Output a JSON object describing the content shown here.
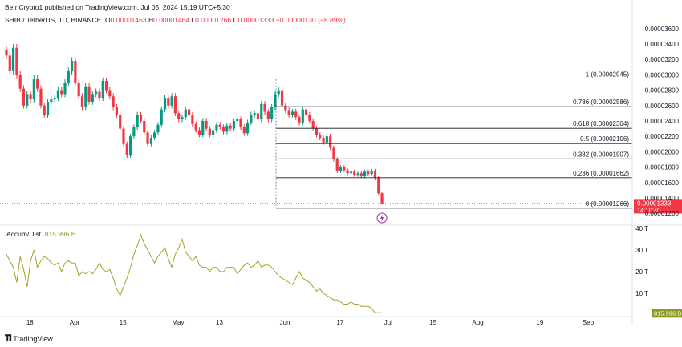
{
  "header": {
    "published": "BeInCrypto1 published on TradingView.com, Jul 05, 2024 15:19 UTC+5:30",
    "symbol": "SHIB / TetherUS, 1D, BINANCE",
    "o_label": "O",
    "o_value": "0.00001463",
    "h_label": "H",
    "h_value": "0.00001464",
    "l_label": "L",
    "l_value": "0.00001266",
    "c_label": "C",
    "c_value": "0.00001333",
    "change": "−0.00000130 (−8.89%)"
  },
  "indicator": {
    "name": "Accum/Dist",
    "value": "815.996 B"
  },
  "footer": {
    "brand": "TradingView"
  },
  "colors": {
    "up": "#089981",
    "down": "#f23645",
    "ad": "#a4a22c",
    "last": "#f23645"
  },
  "chart_data": {
    "type": "candlestick",
    "main": {
      "ylim": [
        1.16e-05,
        3.66e-05
      ],
      "y_ticks": [
        "0.00001200",
        "0.00001400",
        "0.00001600",
        "0.00001800",
        "0.00002000",
        "0.00002200",
        "0.00002400",
        "0.00002600",
        "0.00002800",
        "0.00003000",
        "0.00003200",
        "0.00003400",
        "0.00003600"
      ],
      "last_price": "0.00001333",
      "countdown": "14:10:40",
      "fib_levels": [
        {
          "label": "1 (0.00002945)",
          "value": 2.945e-05
        },
        {
          "label": "0.786 (0.00002586)",
          "value": 2.586e-05
        },
        {
          "label": "0.618 (0.00002304)",
          "value": 2.304e-05
        },
        {
          "label": "0.5 (0.00002106)",
          "value": 2.106e-05
        },
        {
          "label": "0.382 (0.00001907)",
          "value": 1.907e-05
        },
        {
          "label": "0.236 (0.00001662)",
          "value": 1.662e-05
        },
        {
          "label": "0 (0.00001266)",
          "value": 1.266e-05
        }
      ],
      "closes": [
        3.25e-05,
        3.05e-05,
        3.35e-05,
        3e-05,
        2.82e-05,
        2.6e-05,
        2.75e-05,
        2.68e-05,
        2.95e-05,
        2.82e-05,
        2.6e-05,
        2.48e-05,
        2.65e-05,
        2.68e-05,
        2.7e-05,
        2.8e-05,
        2.75e-05,
        2.9e-05,
        3.05e-05,
        3.18e-05,
        2.9e-05,
        2.72e-05,
        2.58e-05,
        2.85e-05,
        2.65e-05,
        2.75e-05,
        2.78e-05,
        2.7e-05,
        2.92e-05,
        2.8e-05,
        2.72e-05,
        2.58e-05,
        2.48e-05,
        2.3e-05,
        2.1e-05,
        1.95e-05,
        2.2e-05,
        2.32e-05,
        2.48e-05,
        2.4e-05,
        2.25e-05,
        2.1e-05,
        2.18e-05,
        2.25e-05,
        2.35e-05,
        2.55e-05,
        2.7e-05,
        2.6e-05,
        2.72e-05,
        2.5e-05,
        2.42e-05,
        2.45e-05,
        2.55e-05,
        2.48e-05,
        2.36e-05,
        2.28e-05,
        2.22e-05,
        2.4e-05,
        2.3e-05,
        2.22e-05,
        2.28e-05,
        2.35e-05,
        2.32e-05,
        2.26e-05,
        2.34e-05,
        2.3e-05,
        2.4e-05,
        2.42e-05,
        2.32e-05,
        2.24e-05,
        2.38e-05,
        2.48e-05,
        2.5e-05,
        2.42e-05,
        2.62e-05,
        2.52e-05,
        2.42e-05,
        2.58e-05,
        2.75e-05,
        2.8e-05,
        2.6e-05,
        2.54e-05,
        2.48e-05,
        2.52e-05,
        2.45e-05,
        2.38e-05,
        2.55e-05,
        2.48e-05,
        2.4e-05,
        2.3e-05,
        2.22e-05,
        2.18e-05,
        2.12e-05,
        2.2e-05,
        2.05e-05,
        1.9e-05,
        1.75e-05,
        1.8e-05,
        1.76e-05,
        1.72e-05,
        1.74e-05,
        1.7e-05,
        1.72e-05,
        1.68e-05,
        1.74e-05,
        1.71e-05,
        1.75e-05,
        1.66e-05,
        1.46e-05,
        1.33e-05
      ]
    },
    "accum_dist": {
      "ylim": [
        0,
        40
      ],
      "unit": "T",
      "y_ticks": [
        "40 T",
        "30 T",
        "20 T",
        "10 T"
      ],
      "values": [
        28,
        25,
        22,
        15,
        27,
        21,
        13,
        25,
        30,
        22,
        25,
        27,
        26,
        24,
        23,
        24,
        20,
        24,
        25,
        24,
        24,
        18,
        20,
        19,
        20,
        19,
        21,
        24,
        21,
        20,
        21,
        17,
        12,
        9,
        13,
        17,
        22,
        28,
        32,
        37,
        33,
        30,
        27,
        24,
        27,
        29,
        31,
        26,
        22,
        28,
        31,
        35,
        29,
        27,
        25,
        27,
        23,
        22,
        22,
        20,
        22,
        22,
        20,
        20,
        22,
        22,
        22,
        19,
        21,
        23,
        24,
        22,
        23,
        25,
        22,
        23,
        23,
        22,
        20,
        18,
        17,
        16,
        15,
        14,
        17,
        20,
        17,
        16,
        15,
        13,
        11,
        12,
        10,
        9,
        8,
        7,
        7,
        6,
        5,
        5,
        6,
        5,
        5,
        4,
        4,
        4,
        3,
        1,
        1,
        1
      ],
      "last_value": "815.996 B"
    },
    "x_ticks": [
      {
        "label": "18",
        "day": 1
      },
      {
        "label": "Apr",
        "day": 14
      },
      {
        "label": "15",
        "day": 28
      },
      {
        "label": "May",
        "day": 44
      },
      {
        "label": "13",
        "day": 56
      },
      {
        "label": "Jun",
        "day": 75
      },
      {
        "label": "17",
        "day": 91
      },
      {
        "label": "Jul",
        "day": 105
      },
      {
        "label": "15",
        "day": 118
      },
      {
        "label": "Aug",
        "day": 131
      },
      {
        "label": "19",
        "day": 149
      },
      {
        "label": "Sep",
        "day": 163
      }
    ],
    "x_days_visible": 178
  }
}
